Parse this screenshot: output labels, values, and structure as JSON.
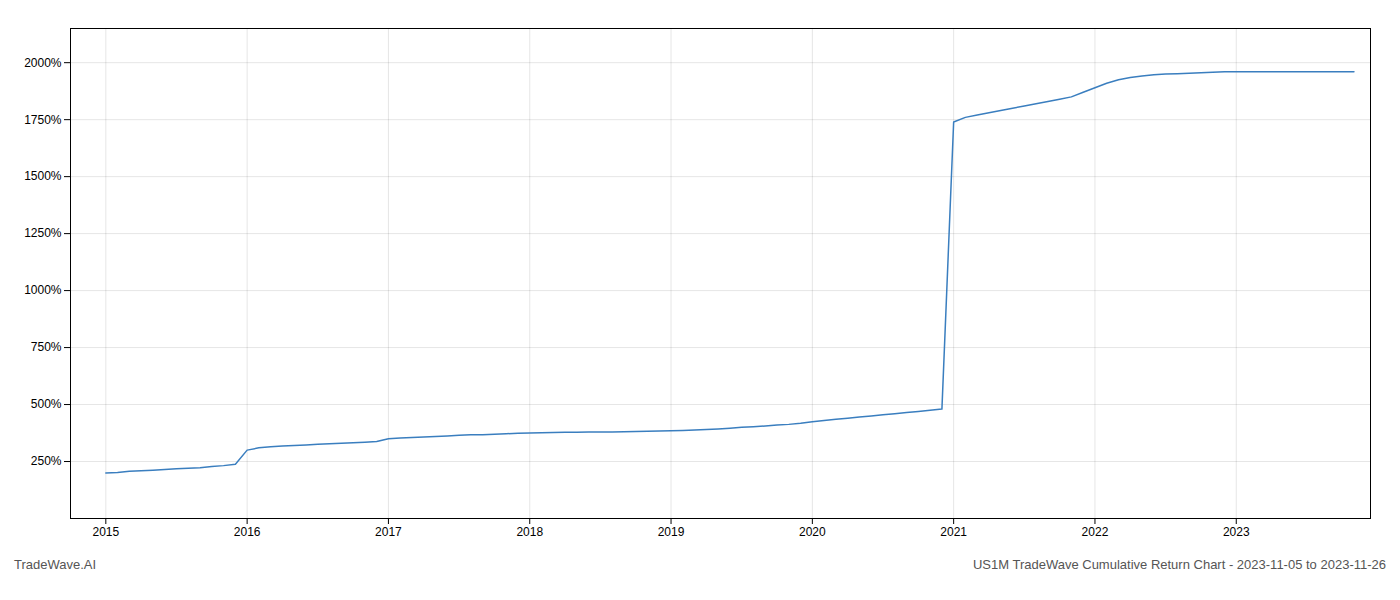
{
  "chart_data": {
    "type": "line",
    "title": "US1M TradeWave Cumulative Return Chart - 2023-11-05 to 2023-11-26",
    "annotations": [
      "TradeWave.AI"
    ],
    "color": "#3a7ebf",
    "grid": true,
    "x": [
      2015.0,
      2015.083,
      2015.167,
      2015.25,
      2015.333,
      2015.417,
      2015.5,
      2015.583,
      2015.667,
      2015.75,
      2015.833,
      2015.917,
      2016.0,
      2016.083,
      2016.167,
      2016.25,
      2016.333,
      2016.417,
      2016.5,
      2016.583,
      2016.667,
      2016.75,
      2016.833,
      2016.917,
      2017.0,
      2017.083,
      2017.167,
      2017.25,
      2017.333,
      2017.417,
      2017.5,
      2017.583,
      2017.667,
      2017.75,
      2017.833,
      2017.917,
      2018.0,
      2018.083,
      2018.167,
      2018.25,
      2018.333,
      2018.417,
      2018.5,
      2018.583,
      2018.667,
      2018.75,
      2018.833,
      2018.917,
      2019.0,
      2019.083,
      2019.167,
      2019.25,
      2019.333,
      2019.417,
      2019.5,
      2019.583,
      2019.667,
      2019.75,
      2019.833,
      2019.917,
      2020.0,
      2020.083,
      2020.167,
      2020.25,
      2020.333,
      2020.417,
      2020.5,
      2020.583,
      2020.667,
      2020.75,
      2020.833,
      2020.917,
      2021.0,
      2021.083,
      2021.167,
      2021.25,
      2021.333,
      2021.417,
      2021.5,
      2021.583,
      2021.667,
      2021.75,
      2021.833,
      2021.917,
      2022.0,
      2022.083,
      2022.167,
      2022.25,
      2022.333,
      2022.417,
      2022.5,
      2022.583,
      2022.667,
      2022.75,
      2022.833,
      2022.917,
      2023.0,
      2023.083,
      2023.167,
      2023.25,
      2023.333,
      2023.417,
      2023.5,
      2023.583,
      2023.667,
      2023.75,
      2023.833
    ],
    "values": [
      200,
      202,
      207,
      210,
      212,
      215,
      218,
      220,
      223,
      228,
      232,
      238,
      300,
      310,
      315,
      318,
      320,
      323,
      326,
      328,
      330,
      332,
      335,
      338,
      350,
      353,
      355,
      358,
      360,
      362,
      365,
      367,
      368,
      370,
      372,
      374,
      375,
      376,
      377,
      378,
      378,
      379,
      380,
      380,
      381,
      382,
      383,
      384,
      385,
      386,
      388,
      390,
      393,
      396,
      400,
      403,
      406,
      410,
      413,
      418,
      425,
      430,
      435,
      440,
      445,
      450,
      455,
      460,
      465,
      470,
      475,
      480,
      1740,
      1760,
      1770,
      1780,
      1790,
      1800,
      1810,
      1820,
      1830,
      1840,
      1850,
      1870,
      1890,
      1910,
      1925,
      1935,
      1942,
      1947,
      1950,
      1952,
      1954,
      1956,
      1958,
      1960,
      1960,
      1960,
      1960,
      1960,
      1960,
      1960,
      1960,
      1960,
      1960,
      1960,
      1960
    ],
    "xlim": [
      2014.75,
      2023.95
    ],
    "xticks": [
      2015,
      2016,
      2017,
      2018,
      2019,
      2020,
      2021,
      2022,
      2023
    ],
    "ylim": [
      0,
      2150
    ],
    "yticks": [
      {
        "value": 250,
        "label": "250%"
      },
      {
        "value": 500,
        "label": "500%"
      },
      {
        "value": 750,
        "label": "750%"
      },
      {
        "value": 1000,
        "label": "1000%"
      },
      {
        "value": 1250,
        "label": "1250%"
      },
      {
        "value": 1500,
        "label": "1500%"
      },
      {
        "value": 1750,
        "label": "1750%"
      },
      {
        "value": 2000,
        "label": "2000%"
      }
    ]
  }
}
